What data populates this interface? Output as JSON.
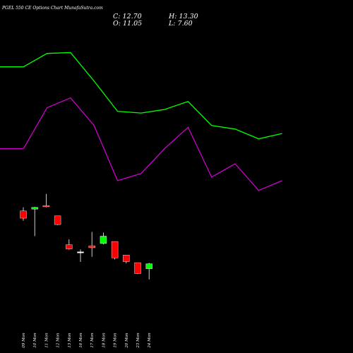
{
  "title": "PGEL 550  CE Options  Chart MunafaSutra.com",
  "ohlc": {
    "close_text": "C: 12.70",
    "open_text": "O: 11.05",
    "high_text": "H: 13.30",
    "low_text": "L: 7.60"
  },
  "colors": {
    "background": "#000000",
    "up": "#00ff00",
    "down": "#ff0000",
    "upper_band": "#00ff00",
    "lower_band": "#cc00cc",
    "wick": "#ffffff",
    "text": "#ffffff"
  },
  "chart_data": {
    "type": "candlestick",
    "title": "PGEL 550  CE Options  Chart MunafaSutra.com",
    "categories": [
      "09 Mon",
      "10 Mon",
      "11 Mon",
      "12 Mon",
      "13 Mon",
      "16 Mon",
      "17 Mon",
      "18 Mon",
      "19 Mon",
      "20 Mon",
      "23 Mon",
      "24 Mon"
    ],
    "candles": [
      {
        "date": "09 Mon",
        "open": 64.0,
        "high": 66.0,
        "low": 58.5,
        "close": 59.9,
        "color": "red"
      },
      {
        "date": "10 Mon",
        "open": 65.0,
        "high": 66.3,
        "low": 49.8,
        "close": 66.0,
        "color": "green"
      },
      {
        "date": "11 Mon",
        "open": 67.0,
        "high": 73.5,
        "low": 66.0,
        "close": 66.3,
        "color": "red"
      },
      {
        "date": "12 Mon",
        "open": 61.2,
        "high": 61.2,
        "low": 56.0,
        "close": 56.3,
        "color": "red"
      },
      {
        "date": "13 Mon",
        "open": 45.0,
        "high": 48.0,
        "low": 42.2,
        "close": 42.6,
        "color": "red"
      },
      {
        "date": "16 Mon",
        "open": 41.0,
        "high": 42.3,
        "low": 35.3,
        "close": 41.0,
        "color": "white"
      },
      {
        "date": "17 Mon",
        "open": 44.3,
        "high": 52.2,
        "low": 38.2,
        "close": 43.3,
        "color": "red"
      },
      {
        "date": "18 Mon",
        "open": 45.7,
        "high": 51.8,
        "low": 45.2,
        "close": 49.8,
        "color": "green"
      },
      {
        "date": "19 Mon",
        "open": 46.8,
        "high": 46.8,
        "low": 36.7,
        "close": 37.6,
        "color": "red"
      },
      {
        "date": "20 Mon",
        "open": 39.2,
        "high": 39.2,
        "low": 34.5,
        "close": 35.5,
        "color": "red"
      },
      {
        "date": "23 Mon",
        "open": 34.9,
        "high": 34.9,
        "low": 28.5,
        "close": 28.8,
        "color": "red"
      },
      {
        "date": "24 Mon",
        "open": 31.5,
        "high": 34.8,
        "low": 25.5,
        "close": 34.3,
        "color": "green"
      }
    ],
    "bands": [
      {
        "name": "",
        "color": "green",
        "x": [
          0,
          1,
          2,
          3,
          4,
          5,
          6,
          7,
          8,
          9,
          10,
          11,
          12
        ],
        "values": [
          145.0,
          145.0,
          152.5,
          153.0,
          137.0,
          120.0,
          119.0,
          121.0,
          125.5,
          112.0,
          110.0,
          104.5,
          107.5
        ]
      },
      {
        "name": "",
        "color": "magenta",
        "x": [
          0,
          1,
          2,
          3,
          4,
          5,
          6,
          7,
          8,
          9,
          10,
          11,
          12
        ],
        "values": [
          99.0,
          99.0,
          122.0,
          127.5,
          112.0,
          81.0,
          85.0,
          99.0,
          111.0,
          83.0,
          90.5,
          75.5,
          81.0
        ]
      }
    ],
    "xlim": [
      -0.5,
      12.5
    ],
    "ylim": [
      0,
      180
    ],
    "grid": false,
    "legend": "none"
  }
}
